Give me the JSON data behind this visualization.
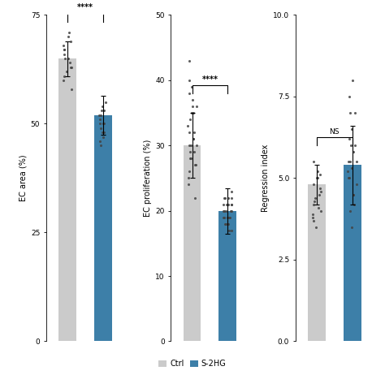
{
  "panel_i": {
    "ec_area": {
      "ylabel": "EC area (%)",
      "ylim": [
        0,
        75
      ],
      "yticks": [
        0,
        25,
        50,
        75
      ],
      "ctrl_bar": 65,
      "s2hg_bar": 52,
      "ctrl_err": 4.0,
      "s2hg_err": 4.5,
      "significance": "****",
      "ctrl_dots": [
        62,
        63,
        64,
        65,
        66,
        67,
        68,
        69,
        70,
        71,
        60,
        58,
        63,
        65,
        67,
        61
      ],
      "s2hg_dots": [
        45,
        47,
        48,
        49,
        50,
        51,
        52,
        53,
        54,
        55,
        46,
        50,
        53,
        52,
        48,
        50
      ]
    },
    "ec_prolif": {
      "ylabel": "EC proliferation (%)",
      "ylim": [
        0,
        50
      ],
      "yticks": [
        0,
        10,
        20,
        30,
        40,
        50
      ],
      "ctrl_bar": 30,
      "s2hg_bar": 20,
      "ctrl_err": 5.0,
      "s2hg_err": 3.5,
      "significance": "****",
      "ctrl_dots": [
        28,
        30,
        32,
        35,
        38,
        40,
        25,
        27,
        31,
        29,
        33,
        36,
        22,
        26,
        30,
        32,
        34,
        37,
        39,
        28,
        31,
        24,
        29,
        30,
        35,
        27,
        43,
        36
      ],
      "s2hg_dots": [
        18,
        20,
        22,
        19,
        21,
        23,
        17,
        20,
        18,
        22,
        19,
        21,
        20,
        18,
        19,
        21,
        22,
        17,
        20,
        19,
        21,
        18,
        20,
        19,
        22,
        21
      ]
    },
    "regression": {
      "ylabel": "Regression index",
      "ylim": [
        0,
        10
      ],
      "yticks": [
        0,
        2.5,
        5.0,
        7.5,
        10.0
      ],
      "ctrl_bar": 4.8,
      "s2hg_bar": 5.4,
      "ctrl_err": 0.6,
      "s2hg_err": 1.2,
      "significance": "NS",
      "ctrl_dots": [
        3.5,
        4.0,
        4.5,
        5.0,
        5.5,
        4.2,
        3.8,
        4.7,
        5.2,
        4.1,
        3.9,
        4.6,
        5.1,
        4.3,
        3.7,
        4.8,
        4.4,
        5.0
      ],
      "s2hg_dots": [
        3.5,
        4.0,
        4.5,
        5.0,
        5.5,
        6.0,
        6.5,
        7.0,
        7.5,
        8.0,
        4.5,
        5.2,
        5.8,
        6.2,
        5.0,
        4.8,
        5.5,
        6.0,
        7.0,
        5.5,
        4.2,
        5.3
      ]
    }
  },
  "ctrl_color": "#cbcbcb",
  "s2hg_color": "#3d7fa8",
  "dot_color": "#444444",
  "bar_width": 0.5,
  "legend_labels": [
    "Ctrl",
    "S-2HG"
  ]
}
